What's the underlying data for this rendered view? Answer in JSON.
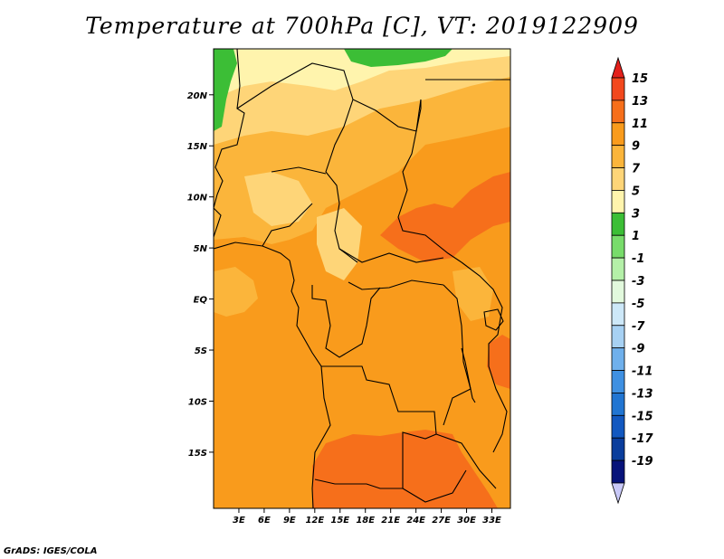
{
  "title": "Temperature at 700hPa [C], VT: 2019122909",
  "credit": "GrADS: IGES/COLA",
  "map": {
    "lon_range": [
      0,
      35
    ],
    "lat_range": [
      -20,
      25
    ],
    "lon_ticks": [
      "3E",
      "6E",
      "9E",
      "12E",
      "15E",
      "18E",
      "21E",
      "24E",
      "27E",
      "30E",
      "33E"
    ],
    "lat_ticks": [
      "20N",
      "15N",
      "10N",
      "5N",
      "EQ",
      "5S",
      "10S",
      "15S"
    ],
    "lon_tick_values": [
      3,
      6,
      9,
      12,
      15,
      18,
      21,
      24,
      27,
      30,
      33
    ],
    "lat_tick_values": [
      20,
      15,
      10,
      5,
      0,
      -5,
      -10,
      -15
    ]
  },
  "colorbar": {
    "labels": [
      "15",
      "13",
      "11",
      "9",
      "7",
      "5",
      "3",
      "1",
      "-1",
      "-3",
      "-5",
      "-7",
      "-9",
      "-11",
      "-13",
      "-15",
      "-17",
      "-19"
    ],
    "colors": [
      "#e3201b",
      "#f2481d",
      "#f66f1b",
      "#f99b1c",
      "#fbb53b",
      "#fed578",
      "#fff4ad",
      "#3cbe36",
      "#78dc6b",
      "#b4f0a8",
      "#e2f9dd",
      "#cde8f8",
      "#a7d1f3",
      "#6fb0ec",
      "#3f90e2",
      "#2175d2",
      "#1258c0",
      "#0a3d9c",
      "#07137a",
      "#c9c9f8"
    ]
  },
  "legend_icons": [
    "arrow-up-icon",
    "arrow-down-icon"
  ]
}
